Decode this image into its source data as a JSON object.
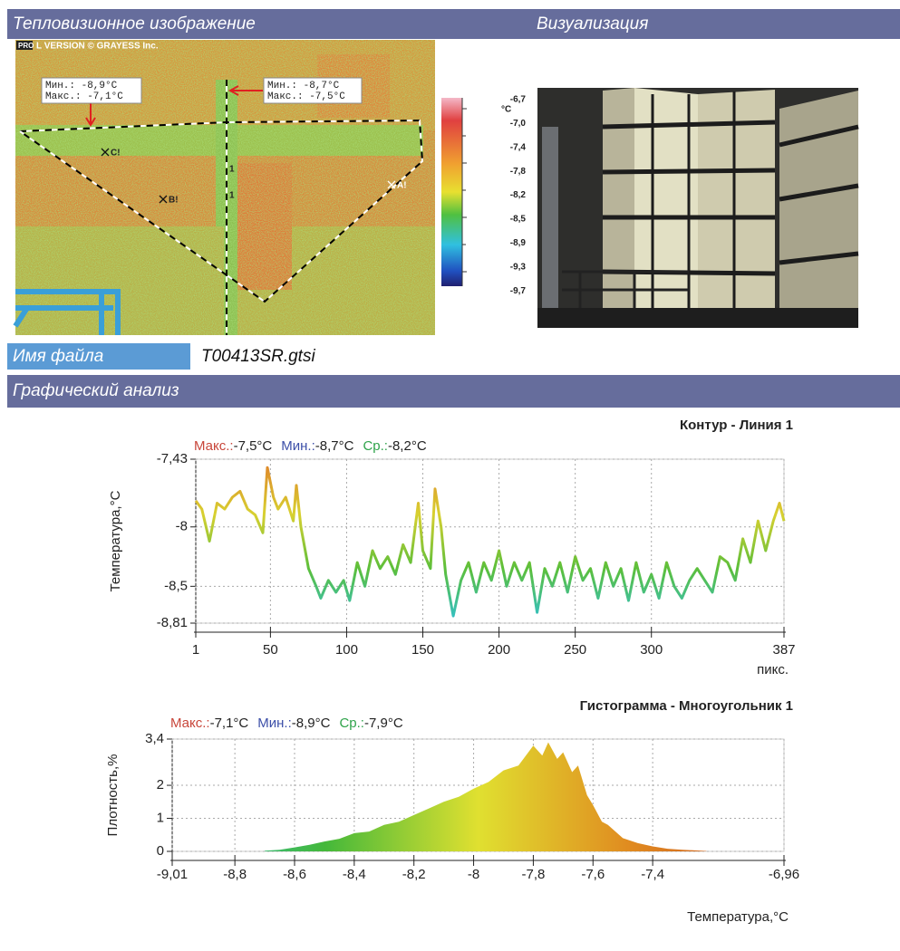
{
  "header": {
    "thermal_title": "Тепловизионное изображение",
    "visual_title": "Визуализация"
  },
  "thermal_image": {
    "badge": "PRO",
    "watermark": "L VERSION © GRAYESS Inc.",
    "boxes": [
      {
        "min": "Мин.: -8,9°C",
        "max": "Макс.: -7,1°C"
      },
      {
        "min": "Мин.: -8,7°C",
        "max": "Макс.: -7,5°C"
      }
    ],
    "markers": [
      "C!",
      "B!",
      "A!"
    ],
    "line_labels": [
      "1",
      "1"
    ]
  },
  "visualization": {
    "unit": "°C",
    "scale": [
      "-6,7",
      "-7,0",
      "-7,4",
      "-7,8",
      "-8,2",
      "-8,5",
      "-8,9",
      "-9,3",
      "-9,7"
    ]
  },
  "file": {
    "label": "Имя файла",
    "name": "T00413SR.gtsi"
  },
  "analysis_title": "Графический анализ",
  "chart_data": [
    {
      "type": "line",
      "title": "Контур - Линия 1",
      "x_label": "пикс.",
      "y_label": "Температура,°C",
      "stats": [
        {
          "label": "Макс.:",
          "value": "-7,5°C",
          "color": "#c8463a"
        },
        {
          "label": "Мин.:",
          "value": "-8,7°C",
          "color": "#3c4fa8"
        },
        {
          "label": "Ср.:",
          "value": "-8,2°C",
          "color": "#2ea34a"
        }
      ],
      "gradient": [
        "#e0802a",
        "#d8d030",
        "#5cbf3a",
        "#30c0d0"
      ],
      "xlim": [
        1,
        387
      ],
      "xticks": [
        1,
        50,
        100,
        150,
        200,
        250,
        300,
        387
      ],
      "ylim": [
        -8.81,
        -7.43
      ],
      "yticks": [
        {
          "value": -7.43,
          "label": "-7,43"
        },
        -8,
        {
          "value": -8.5,
          "label": "-8,5"
        },
        {
          "value": -8.81,
          "label": "-8,81"
        }
      ],
      "grid": true,
      "x": [
        1,
        5,
        10,
        15,
        20,
        25,
        30,
        35,
        40,
        45,
        48,
        52,
        55,
        60,
        65,
        67,
        70,
        75,
        80,
        83,
        88,
        93,
        98,
        102,
        107,
        112,
        117,
        122,
        127,
        132,
        137,
        142,
        147,
        150,
        155,
        158,
        162,
        165,
        170,
        175,
        180,
        185,
        190,
        195,
        200,
        205,
        210,
        215,
        220,
        225,
        230,
        235,
        240,
        245,
        250,
        255,
        260,
        265,
        270,
        275,
        280,
        285,
        290,
        295,
        300,
        305,
        310,
        315,
        320,
        325,
        330,
        335,
        340,
        345,
        350,
        355,
        360,
        365,
        370,
        375,
        380,
        384,
        387
      ],
      "values": [
        -7.78,
        -7.85,
        -8.12,
        -7.8,
        -7.85,
        -7.75,
        -7.7,
        -7.85,
        -7.9,
        -8.05,
        -7.5,
        -7.75,
        -7.85,
        -7.75,
        -7.95,
        -7.65,
        -8.0,
        -8.35,
        -8.5,
        -8.6,
        -8.45,
        -8.55,
        -8.45,
        -8.62,
        -8.3,
        -8.5,
        -8.2,
        -8.35,
        -8.25,
        -8.4,
        -8.15,
        -8.3,
        -7.8,
        -8.2,
        -8.35,
        -7.68,
        -8.0,
        -8.4,
        -8.75,
        -8.45,
        -8.3,
        -8.55,
        -8.3,
        -8.45,
        -8.2,
        -8.5,
        -8.3,
        -8.45,
        -8.3,
        -8.72,
        -8.35,
        -8.5,
        -8.3,
        -8.55,
        -8.25,
        -8.45,
        -8.35,
        -8.6,
        -8.3,
        -8.5,
        -8.35,
        -8.62,
        -8.3,
        -8.55,
        -8.4,
        -8.6,
        -8.3,
        -8.5,
        -8.6,
        -8.45,
        -8.35,
        -8.45,
        -8.55,
        -8.25,
        -8.3,
        -8.45,
        -8.1,
        -8.3,
        -7.95,
        -8.2,
        -7.95,
        -7.8,
        -7.95
      ]
    },
    {
      "type": "area",
      "title": "Гистограмма - Многоугольник 1",
      "x_label": "Температура,°C",
      "y_label": "Плотность,%",
      "stats": [
        {
          "label": "Макс.:",
          "value": "-7,1°C",
          "color": "#c8463a"
        },
        {
          "label": "Мин.:",
          "value": "-8,9°C",
          "color": "#3c4fa8"
        },
        {
          "label": "Ср.:",
          "value": "-7,9°C",
          "color": "#2ea34a"
        }
      ],
      "gradient": [
        "#30c0c0",
        "#44b83a",
        "#e0e030",
        "#e08a20",
        "#c84a20"
      ],
      "xlim": [
        -9.01,
        -6.96
      ],
      "xticks": [
        {
          "value": -9.01,
          "label": "-9,01"
        },
        {
          "value": -8.8,
          "label": "-8,8"
        },
        {
          "value": -8.6,
          "label": "-8,6"
        },
        {
          "value": -8.4,
          "label": "-8,4"
        },
        {
          "value": -8.2,
          "label": "-8,2"
        },
        -8,
        {
          "value": -7.8,
          "label": "-7,8"
        },
        {
          "value": -7.6,
          "label": "-7,6"
        },
        {
          "value": -7.4,
          "label": "-7,4"
        },
        {
          "value": -6.96,
          "label": "-6,96"
        }
      ],
      "ylim": [
        0,
        3.4
      ],
      "yticks": [
        0,
        1,
        2,
        {
          "value": 3.4,
          "label": "3,4"
        }
      ],
      "grid": true,
      "x": [
        -8.7,
        -8.65,
        -8.6,
        -8.55,
        -8.5,
        -8.45,
        -8.4,
        -8.35,
        -8.3,
        -8.25,
        -8.2,
        -8.15,
        -8.1,
        -8.05,
        -8.0,
        -7.95,
        -7.9,
        -7.85,
        -7.8,
        -7.77,
        -7.75,
        -7.72,
        -7.7,
        -7.67,
        -7.65,
        -7.62,
        -7.6,
        -7.57,
        -7.55,
        -7.5,
        -7.45,
        -7.4,
        -7.35,
        -7.3,
        -7.22
      ],
      "values": [
        0.02,
        0.05,
        0.12,
        0.2,
        0.3,
        0.38,
        0.55,
        0.6,
        0.8,
        0.9,
        1.1,
        1.3,
        1.5,
        1.65,
        1.9,
        2.1,
        2.45,
        2.6,
        3.2,
        2.9,
        3.3,
        2.8,
        3.0,
        2.4,
        2.6,
        1.7,
        1.4,
        0.9,
        0.8,
        0.4,
        0.25,
        0.15,
        0.08,
        0.05,
        0.01
      ]
    }
  ]
}
